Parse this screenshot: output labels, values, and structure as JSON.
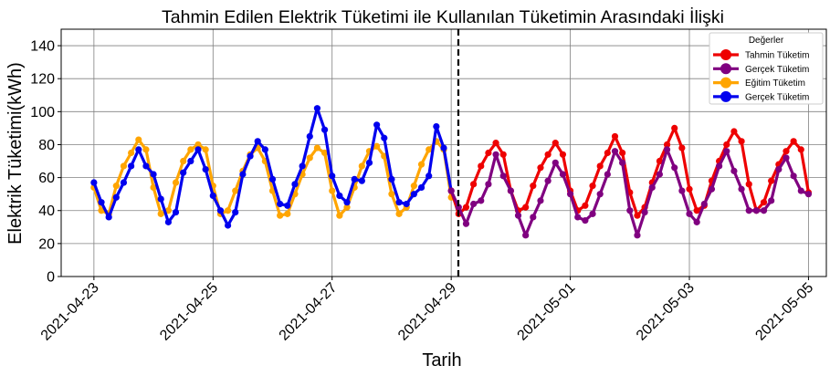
{
  "chart_data": {
    "type": "line",
    "title": "Tahmin Edilen Elektrik Tüketimi ile Kullanılan Tüketimin Arasındaki İlişki",
    "xlabel": "Tarih",
    "ylabel": "Elektrik Tüketimi(kWh)",
    "ylim": [
      0,
      150
    ],
    "yticks": [
      0,
      20,
      40,
      60,
      80,
      100,
      120,
      140
    ],
    "xlim_days": [
      -0.55,
      12.3
    ],
    "xticks": [
      {
        "label": "2021-04-23",
        "day": 0
      },
      {
        "label": "2021-04-25",
        "day": 2
      },
      {
        "label": "2021-04-27",
        "day": 4
      },
      {
        "label": "2021-04-29",
        "day": 6
      },
      {
        "label": "2021-05-01",
        "day": 8
      },
      {
        "label": "2021-05-03",
        "day": 10
      },
      {
        "label": "2021-05-05",
        "day": 12
      }
    ],
    "vline_day": 6.12,
    "grid": true,
    "legend": {
      "title": "Değerler",
      "position": "top-right",
      "entries": [
        {
          "label": "Tahmin Tüketim",
          "color": "#ee0000"
        },
        {
          "label": "Gerçek Tüketim",
          "color": "#800080"
        },
        {
          "label": "Eğitim Tüketim",
          "color": "#ffa500"
        },
        {
          "label": "Gerçek Tüketim",
          "color": "#0000ee"
        }
      ]
    },
    "series": [
      {
        "name": "Eğitim Tüketim",
        "color": "#ffa500",
        "start_day": 0,
        "step_days": 0.125,
        "values": [
          54,
          40,
          38,
          55,
          67,
          75,
          83,
          77,
          54,
          38,
          40,
          57,
          70,
          77,
          80,
          77,
          55,
          38,
          40,
          52,
          64,
          74,
          78,
          70,
          52,
          37,
          38,
          50,
          62,
          72,
          78,
          75,
          52,
          37,
          42,
          54,
          67,
          76,
          79,
          73,
          50,
          38,
          42,
          55,
          68,
          77,
          82,
          77,
          48
        ]
      },
      {
        "name": "Gerçek Tüketim",
        "color": "#0000ee",
        "start_day": 0,
        "step_days": 0.125,
        "values": [
          57,
          45,
          36,
          48,
          57,
          67,
          77,
          67,
          62,
          47,
          33,
          39,
          63,
          70,
          77,
          65,
          49,
          40,
          31,
          39,
          62,
          73,
          82,
          77,
          59,
          44,
          43,
          56,
          67,
          85,
          102,
          89,
          61,
          49,
          45,
          59,
          58,
          69,
          92,
          84,
          59,
          45,
          44,
          50,
          54,
          61,
          91,
          78,
          52
        ]
      },
      {
        "name": "Tahmin Tüketim",
        "color": "#ee0000",
        "start_day": 6.0,
        "step_days": 0.125,
        "values": [
          52,
          38,
          42,
          56,
          67,
          75,
          81,
          74,
          52,
          40,
          42,
          55,
          66,
          74,
          81,
          74,
          52,
          40,
          43,
          55,
          67,
          75,
          85,
          75,
          51,
          37,
          42,
          57,
          70,
          80,
          90,
          78,
          53,
          40,
          43,
          58,
          70,
          80,
          88,
          82,
          56,
          40,
          45,
          58,
          68,
          76,
          82,
          77,
          51
        ]
      },
      {
        "name": "Gerçek Tüketim",
        "color": "#800080",
        "start_day": 6.0,
        "step_days": 0.125,
        "values": [
          52,
          42,
          32,
          44,
          46,
          56,
          74,
          61,
          52,
          37,
          25,
          36,
          46,
          58,
          69,
          62,
          50,
          36,
          34,
          38,
          50,
          62,
          76,
          69,
          40,
          25,
          39,
          54,
          62,
          77,
          66,
          52,
          38,
          33,
          44,
          53,
          67,
          76,
          64,
          53,
          40,
          40,
          40,
          46,
          65,
          72,
          61,
          52,
          50
        ]
      }
    ]
  }
}
